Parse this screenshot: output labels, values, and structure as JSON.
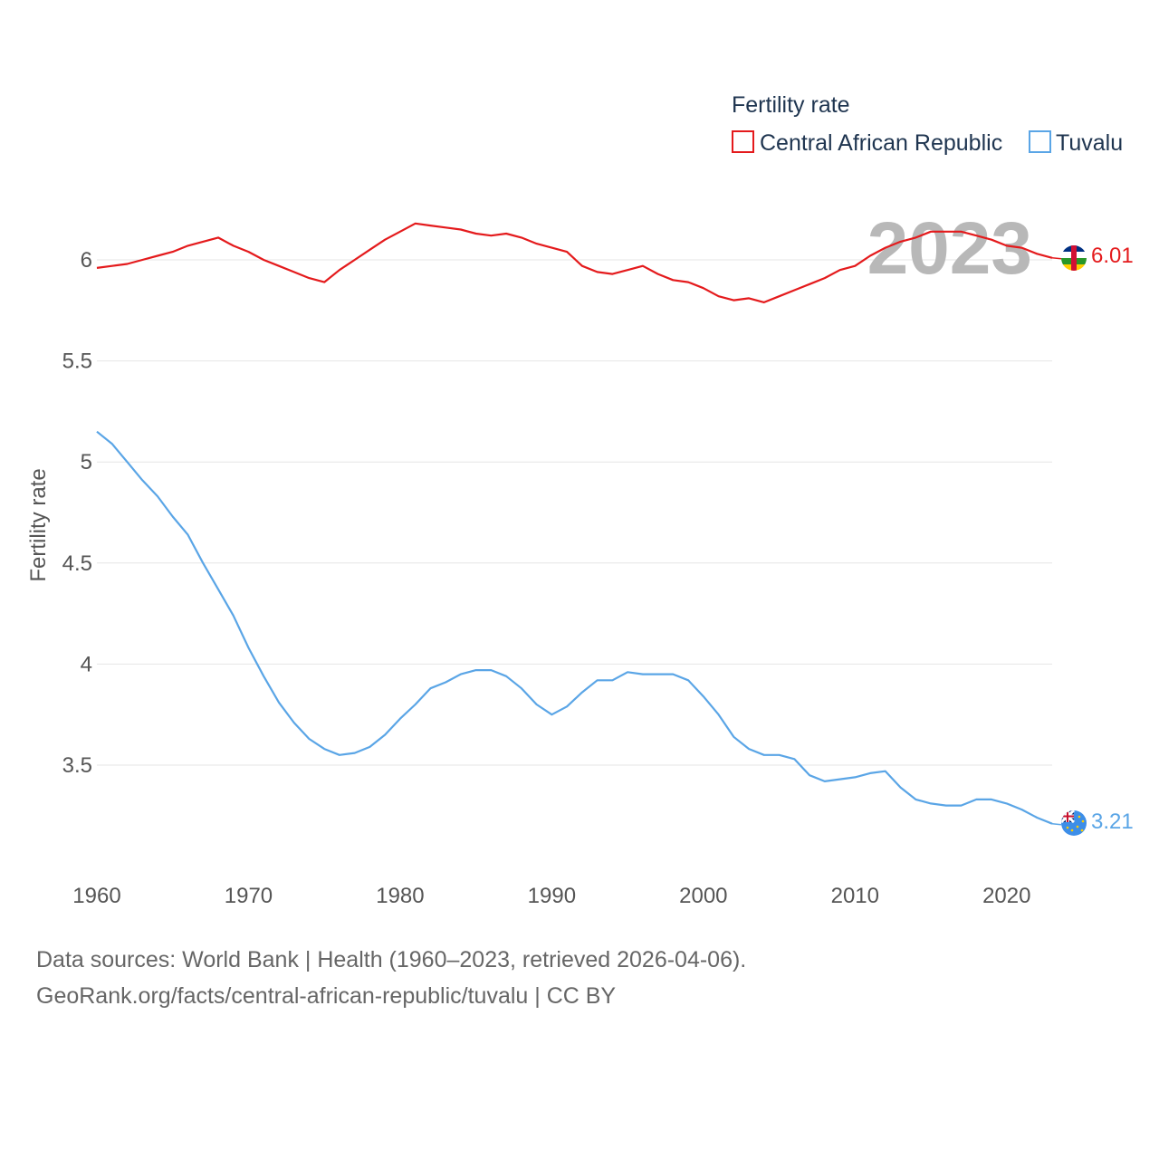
{
  "chart_data": {
    "type": "line",
    "title": "",
    "legend_title": "Fertility rate",
    "legend_position": "top-right",
    "ylabel": "Fertility rate",
    "xlabel": "",
    "xlim": [
      1960,
      2023
    ],
    "ylim": [
      3.05,
      6.25
    ],
    "x_ticks": [
      1960,
      1970,
      1980,
      1990,
      2000,
      2010,
      2020
    ],
    "y_ticks": [
      3.5,
      4,
      4.5,
      5,
      5.5,
      6
    ],
    "y_tick_labels": [
      "3.5",
      "4",
      "4.5",
      "5",
      "5.5",
      "6"
    ],
    "x_tick_labels": [
      "1960",
      "1970",
      "1980",
      "1990",
      "2000",
      "2010",
      "2020"
    ],
    "year_label": "2023",
    "x": [
      1960,
      1961,
      1962,
      1963,
      1964,
      1965,
      1966,
      1967,
      1968,
      1969,
      1970,
      1971,
      1972,
      1973,
      1974,
      1975,
      1976,
      1977,
      1978,
      1979,
      1980,
      1981,
      1982,
      1983,
      1984,
      1985,
      1986,
      1987,
      1988,
      1989,
      1990,
      1991,
      1992,
      1993,
      1994,
      1995,
      1996,
      1997,
      1998,
      1999,
      2000,
      2001,
      2002,
      2003,
      2004,
      2005,
      2006,
      2007,
      2008,
      2009,
      2010,
      2011,
      2012,
      2013,
      2014,
      2015,
      2016,
      2017,
      2018,
      2019,
      2020,
      2021,
      2022,
      2023
    ],
    "series": [
      {
        "name": "Central African Republic",
        "color": "#e41a1c",
        "end_label": "6.01",
        "values": [
          5.96,
          5.97,
          5.98,
          6.0,
          6.02,
          6.04,
          6.07,
          6.09,
          6.11,
          6.07,
          6.04,
          6.0,
          5.97,
          5.94,
          5.91,
          5.89,
          5.95,
          6.0,
          6.05,
          6.1,
          6.14,
          6.18,
          6.17,
          6.16,
          6.15,
          6.13,
          6.12,
          6.13,
          6.11,
          6.08,
          6.06,
          6.04,
          5.97,
          5.94,
          5.93,
          5.95,
          5.97,
          5.93,
          5.9,
          5.89,
          5.86,
          5.82,
          5.8,
          5.81,
          5.79,
          5.82,
          5.85,
          5.88,
          5.91,
          5.95,
          5.97,
          6.02,
          6.06,
          6.09,
          6.11,
          6.14,
          6.14,
          6.14,
          6.12,
          6.1,
          6.07,
          6.06,
          6.03,
          6.01
        ]
      },
      {
        "name": "Tuvalu",
        "color": "#5aa5e6",
        "end_label": "3.21",
        "values": [
          5.15,
          5.09,
          5.0,
          4.91,
          4.83,
          4.73,
          4.64,
          4.5,
          4.37,
          4.24,
          4.08,
          3.94,
          3.81,
          3.71,
          3.63,
          3.58,
          3.55,
          3.56,
          3.59,
          3.65,
          3.73,
          3.8,
          3.88,
          3.91,
          3.95,
          3.97,
          3.97,
          3.94,
          3.88,
          3.8,
          3.75,
          3.79,
          3.86,
          3.92,
          3.92,
          3.96,
          3.95,
          3.95,
          3.95,
          3.92,
          3.84,
          3.75,
          3.64,
          3.58,
          3.55,
          3.55,
          3.53,
          3.45,
          3.42,
          3.43,
          3.44,
          3.46,
          3.47,
          3.39,
          3.33,
          3.31,
          3.3,
          3.3,
          3.33,
          3.33,
          3.31,
          3.28,
          3.24,
          3.21
        ]
      }
    ]
  },
  "flags": {
    "central_african_republic": {
      "blue": "#003082",
      "white": "#ffffff",
      "green": "#289728",
      "yellow": "#ffce00",
      "red": "#d21034"
    },
    "tuvalu": {
      "blue": "#3d8ee8",
      "navy": "#012169",
      "red": "#c8102e",
      "star": "#ffce00"
    }
  },
  "source": {
    "line1": "Data sources: World Bank | Health (1960–2023, retrieved 2026-04-06).",
    "line2": "GeoRank.org/facts/central-african-republic/tuvalu | CC BY"
  }
}
